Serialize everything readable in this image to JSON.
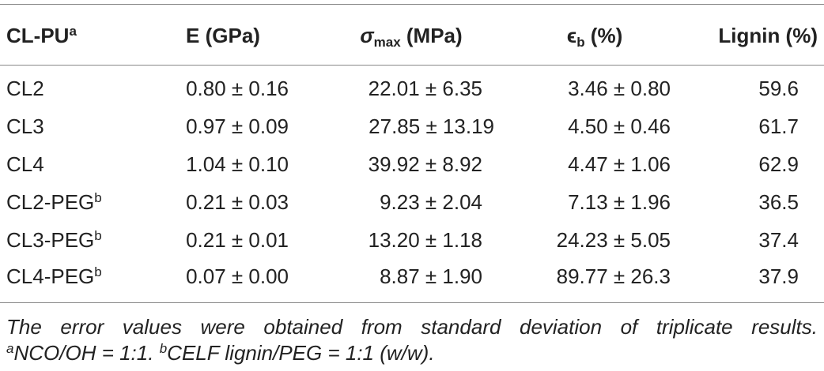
{
  "table": {
    "header": [
      {
        "text": "CL-PU",
        "sup": "a"
      },
      {
        "text": "E (GPa)"
      },
      {
        "text": "σ",
        "sub": "max",
        "rest": " (MPa)"
      },
      {
        "text": "ϵ",
        "sub": "b",
        "rest": " (%)"
      },
      {
        "text": "Lignin (%)"
      }
    ],
    "rows": [
      {
        "label": "CL2",
        "cells": [
          "0.80 ± 0.16",
          "22.01 ± 6.35",
          "3.46 ± 0.80",
          "59.6"
        ]
      },
      {
        "label": "CL3",
        "cells": [
          "0.97 ± 0.09",
          "27.85 ± 13.19",
          "4.50 ± 0.46",
          "61.7"
        ]
      },
      {
        "label": "CL4",
        "cells": [
          "1.04 ± 0.10",
          "39.92 ± 8.92",
          "4.47 ± 1.06",
          "62.9"
        ]
      },
      {
        "label": "CL2-PEG",
        "sup": "b",
        "cells": [
          "0.21 ± 0.03",
          "9.23 ± 2.04",
          "7.13 ± 1.96",
          "36.5"
        ]
      },
      {
        "label": "CL3-PEG",
        "sup": "b",
        "cells": [
          "0.21 ± 0.01",
          "13.20 ± 1.18",
          "24.23 ± 5.05",
          "37.4"
        ]
      },
      {
        "label": "CL4-PEG",
        "sup": "b",
        "cells": [
          "0.07 ± 0.00",
          "8.87 ± 1.90",
          "89.77 ± 26.3",
          "37.9"
        ]
      }
    ],
    "note": "The error values were obtained from standard deviation of triplicate results.",
    "footnotes": [
      {
        "mark": "a",
        "text": "NCO/OH = 1:1."
      },
      {
        "mark": "b",
        "text": "CELF lignin/PEG = 1:1 (w/w)."
      }
    ]
  }
}
